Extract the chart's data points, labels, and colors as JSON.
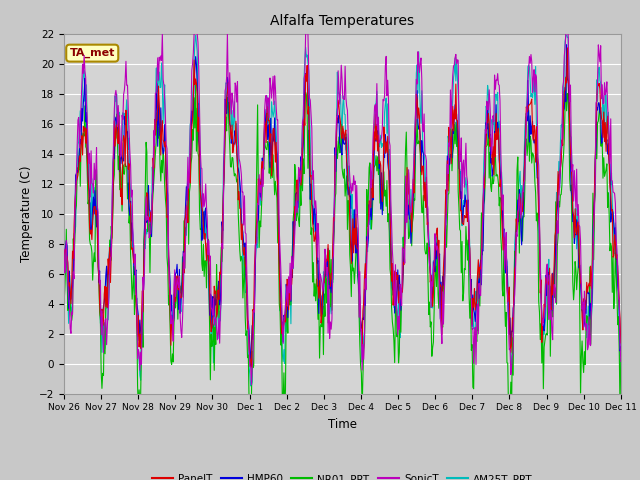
{
  "title": "Alfalfa Temperatures",
  "xlabel": "Time",
  "ylabel": "Temperature (C)",
  "ylim": [
    -2,
    22
  ],
  "annotation": "TA_met",
  "annotation_color": "#8B0000",
  "annotation_bg": "#FFFFC0",
  "annotation_edge": "#AA8800",
  "fig_facecolor": "#C8C8C8",
  "plot_facecolor": "#D4D4D4",
  "grid_color": "#FFFFFF",
  "series": {
    "PanelT": {
      "color": "#DD0000",
      "lw": 0.8,
      "zorder": 4
    },
    "HMP60": {
      "color": "#0000DD",
      "lw": 0.8,
      "zorder": 3
    },
    "NR01_PRT": {
      "color": "#00BB00",
      "lw": 0.8,
      "zorder": 2
    },
    "SonicT": {
      "color": "#BB00BB",
      "lw": 0.8,
      "zorder": 5
    },
    "AM25T_PRT": {
      "color": "#00BBBB",
      "lw": 0.8,
      "zorder": 1
    }
  },
  "xtick_labels": [
    "Nov 26",
    "Nov 27",
    "Nov 28",
    "Nov 29",
    "Nov 30",
    "Dec 1",
    "Dec 2",
    "Dec 3",
    "Dec 4",
    "Dec 5",
    "Dec 6",
    "Dec 7",
    "Dec 8",
    "Dec 9",
    "Dec 10",
    "Dec 11"
  ],
  "yticks": [
    -2,
    0,
    2,
    4,
    6,
    8,
    10,
    12,
    14,
    16,
    18,
    20,
    22
  ],
  "num_points": 720,
  "figsize": [
    6.4,
    4.8
  ],
  "dpi": 100
}
